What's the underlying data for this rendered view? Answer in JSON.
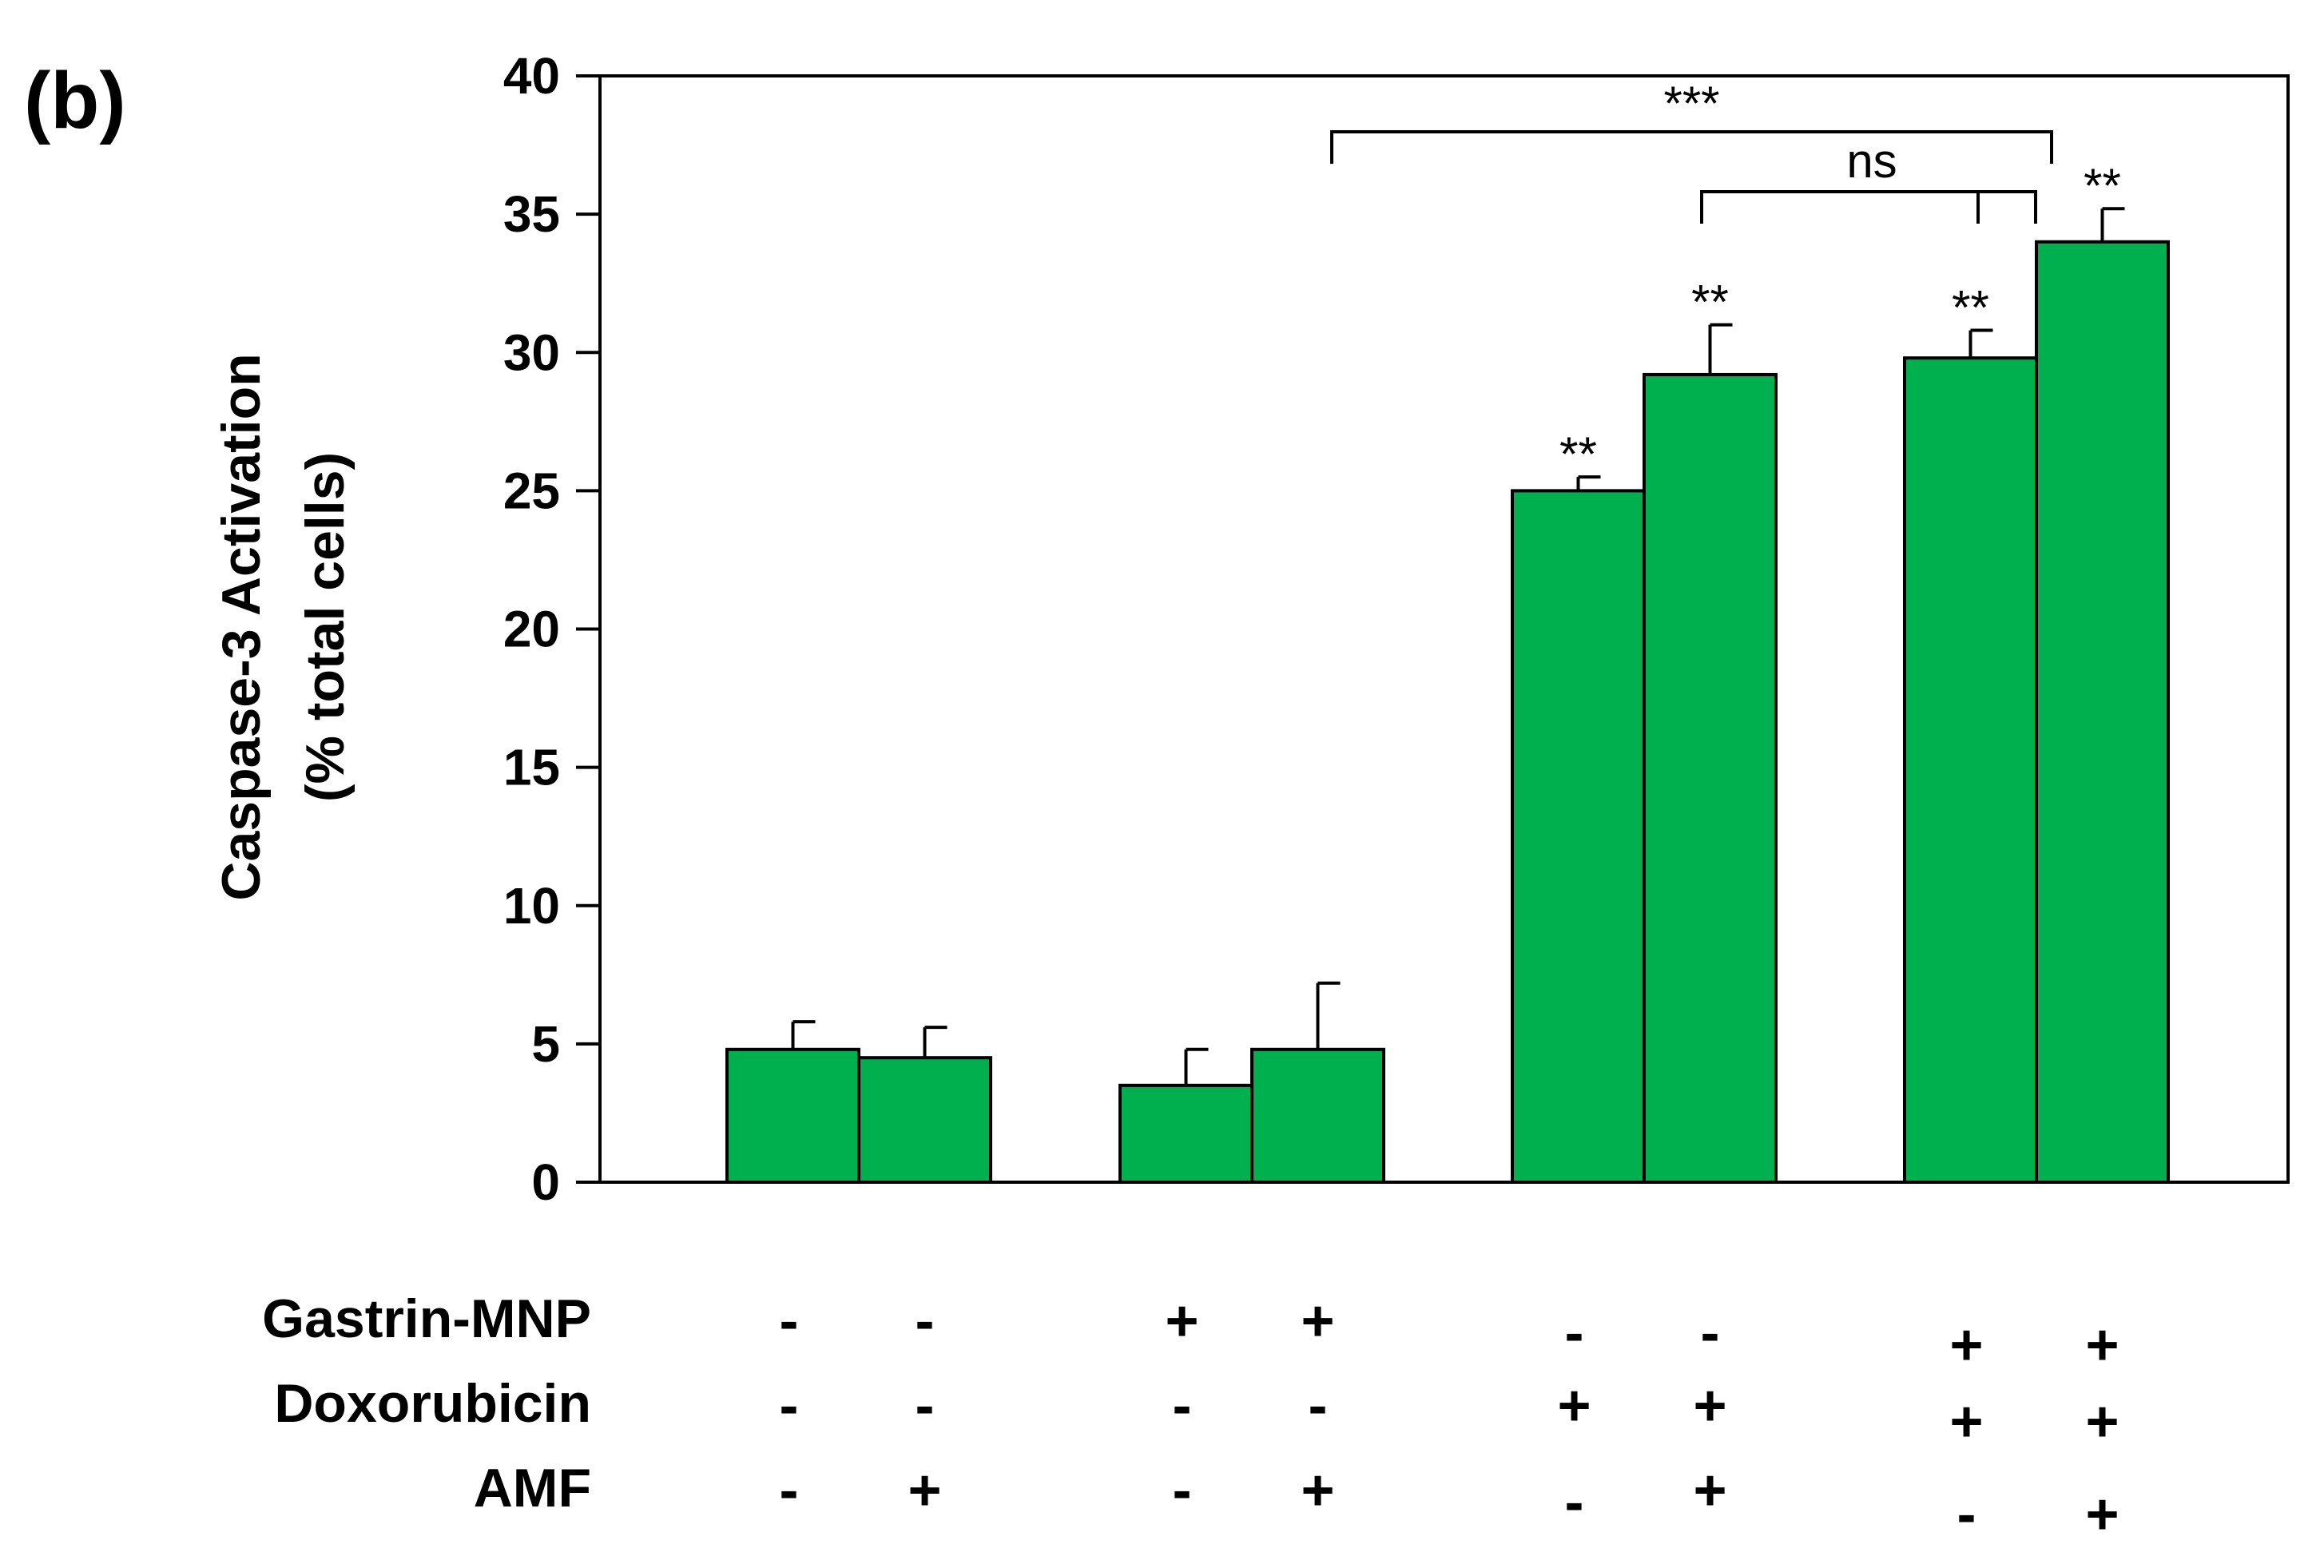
{
  "panel_label": "(b)",
  "chart_data": {
    "type": "bar",
    "title": "",
    "xlabel": "",
    "ylabel": "Caspase-3 Activation",
    "ylabel2": "(% total cells)",
    "ylim": [
      0,
      40
    ],
    "yticks": [
      "0",
      "5",
      "10",
      "15",
      "20",
      "25",
      "30",
      "35",
      "40"
    ],
    "grid": false,
    "bar_color": "#00b04f",
    "groups": [
      {
        "bars": [
          {
            "value": 4.8,
            "error": 1.0,
            "sig": ""
          },
          {
            "value": 4.5,
            "error": 1.1,
            "sig": ""
          }
        ]
      },
      {
        "bars": [
          {
            "value": 3.5,
            "error": 1.3,
            "sig": ""
          },
          {
            "value": 4.8,
            "error": 2.4,
            "sig": ""
          }
        ]
      },
      {
        "bars": [
          {
            "value": 25.0,
            "error": 0.5,
            "sig": "**"
          },
          {
            "value": 29.2,
            "error": 1.8,
            "sig": "**"
          }
        ]
      },
      {
        "bars": [
          {
            "value": 29.8,
            "error": 1.0,
            "sig": "**"
          },
          {
            "value": 34.0,
            "error": 1.2,
            "sig": "**"
          }
        ]
      }
    ],
    "comparisons": [
      {
        "label": "***",
        "from": "group2-bar1",
        "to": "group4-bar1"
      },
      {
        "label": "ns",
        "from": "group3-bar2",
        "to": "group4-bar1"
      }
    ],
    "conditions": [
      {
        "name": "Gastrin-MNP",
        "values": [
          "-",
          "-",
          "+",
          "+",
          "-",
          "-",
          "+",
          "+"
        ]
      },
      {
        "name": "Doxorubicin",
        "values": [
          "-",
          "-",
          "-",
          "-",
          "+",
          "+",
          "+",
          "+"
        ]
      },
      {
        "name": "AMF",
        "values": [
          "-",
          "+",
          "-",
          "+",
          "-",
          "+",
          "-",
          "+"
        ]
      }
    ]
  }
}
